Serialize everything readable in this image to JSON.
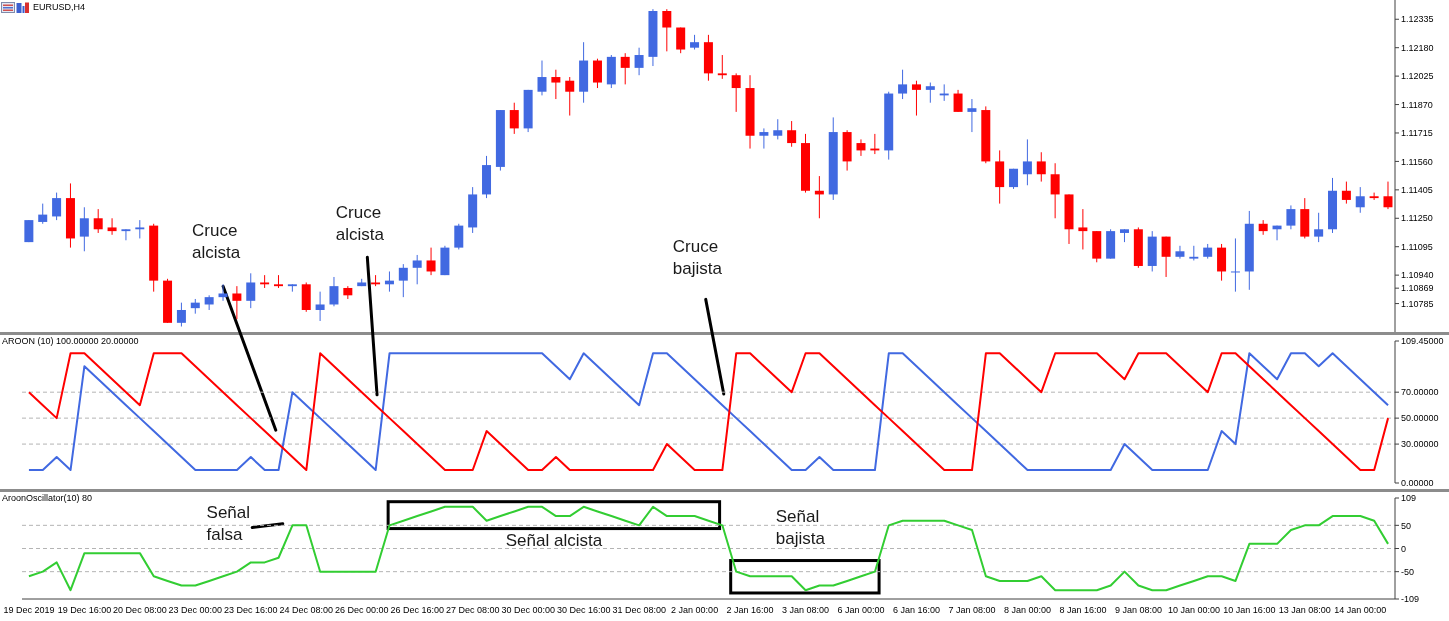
{
  "chart_data": [
    {
      "type": "candlestick",
      "title": "EURUSD,H4",
      "categories": [
        null,
        null,
        null,
        null,
        null,
        null,
        null,
        null,
        null,
        null,
        null,
        null,
        null,
        null,
        null,
        null,
        null,
        null,
        null,
        null,
        null,
        null,
        null,
        null,
        null,
        null,
        null,
        null,
        null,
        null,
        null,
        null,
        null,
        null,
        null,
        null,
        null,
        null,
        null,
        null,
        null,
        null,
        null,
        null,
        null,
        null,
        null,
        null,
        null,
        null,
        null,
        null,
        null,
        null,
        null,
        null,
        null,
        null,
        null,
        null,
        null,
        null,
        null,
        null,
        null,
        null,
        null,
        null,
        null,
        null,
        null,
        null,
        null,
        null,
        null,
        null,
        null,
        null,
        null,
        null,
        null,
        null,
        null,
        null,
        null,
        null,
        null,
        null,
        null,
        null,
        null,
        null,
        null,
        null,
        null,
        null,
        null,
        null,
        null
      ],
      "ohlc": [
        [
          1.1112,
          1.1124,
          1.1112,
          1.1124
        ],
        [
          1.1123,
          1.1133,
          1.1122,
          1.1127
        ],
        [
          1.1126,
          1.1139,
          1.1124,
          1.1136
        ],
        [
          1.1136,
          1.1144,
          1.1109,
          1.1114
        ],
        [
          1.1115,
          1.1131,
          1.1107,
          1.1125
        ],
        [
          1.1125,
          1.113,
          1.1117,
          1.1119
        ],
        [
          1.112,
          1.1125,
          1.1116,
          1.1118
        ],
        [
          1.1118,
          1.1119,
          1.1113,
          1.1119
        ],
        [
          1.1119,
          1.1124,
          1.1114,
          1.112
        ],
        [
          1.1121,
          1.1122,
          1.1085,
          1.1091
        ],
        [
          1.1091,
          1.1092,
          1.1068,
          1.1068
        ],
        [
          1.1068,
          1.1079,
          1.1066,
          1.1075
        ],
        [
          1.1076,
          1.1081,
          1.1073,
          1.1079
        ],
        [
          1.1078,
          1.1083,
          1.1075,
          1.1082
        ],
        [
          1.1082,
          1.1089,
          1.108,
          1.1084
        ],
        [
          1.1084,
          1.1088,
          1.107,
          1.108
        ],
        [
          1.108,
          1.1095,
          1.1076,
          1.109
        ],
        [
          1.109,
          1.1094,
          1.1087,
          1.1089
        ],
        [
          1.1089,
          1.1094,
          1.1087,
          1.1088
        ],
        [
          1.1088,
          1.1089,
          1.1085,
          1.1089
        ],
        [
          1.1089,
          1.109,
          1.1074,
          1.1075
        ],
        [
          1.1075,
          1.1085,
          1.1069,
          1.1078
        ],
        [
          1.1078,
          1.1093,
          1.1077,
          1.1088
        ],
        [
          1.1087,
          1.1088,
          1.1081,
          1.1083
        ],
        [
          1.1088,
          1.1092,
          1.1088,
          1.109
        ],
        [
          1.109,
          1.1094,
          1.1088,
          1.1089
        ],
        [
          1.1089,
          1.1096,
          1.1085,
          1.1091
        ],
        [
          1.1091,
          1.11,
          1.1082,
          1.1098
        ],
        [
          1.1098,
          1.1105,
          1.1089,
          1.1102
        ],
        [
          1.1102,
          1.1109,
          1.1094,
          1.1096
        ],
        [
          1.1094,
          1.111,
          1.1094,
          1.1109
        ],
        [
          1.1109,
          1.1122,
          1.1108,
          1.1121
        ],
        [
          1.112,
          1.1142,
          1.1117,
          1.1138
        ],
        [
          1.1138,
          1.1159,
          1.1136,
          1.1154
        ],
        [
          1.1153,
          1.1184,
          1.1151,
          1.1184
        ],
        [
          1.1184,
          1.1188,
          1.1171,
          1.1174
        ],
        [
          1.1174,
          1.1195,
          1.1172,
          1.1195
        ],
        [
          1.1194,
          1.1211,
          1.1192,
          1.1202
        ],
        [
          1.1202,
          1.1206,
          1.119,
          1.1199
        ],
        [
          1.12,
          1.1202,
          1.1181,
          1.1194
        ],
        [
          1.1194,
          1.1221,
          1.1188,
          1.1211
        ],
        [
          1.1211,
          1.1212,
          1.1196,
          1.1199
        ],
        [
          1.1198,
          1.1214,
          1.1196,
          1.1213
        ],
        [
          1.1213,
          1.1215,
          1.1198,
          1.1207
        ],
        [
          1.1207,
          1.1218,
          1.1203,
          1.1214
        ],
        [
          1.1213,
          1.1239,
          1.1208,
          1.1238
        ],
        [
          1.1238,
          1.1239,
          1.1216,
          1.1229
        ],
        [
          1.1229,
          1.1229,
          1.1215,
          1.1217
        ],
        [
          1.1218,
          1.1225,
          1.1217,
          1.1221
        ],
        [
          1.1221,
          1.1225,
          1.12,
          1.1204
        ],
        [
          1.1204,
          1.1214,
          1.1201,
          1.1203
        ],
        [
          1.1203,
          1.1204,
          1.1183,
          1.1196
        ],
        [
          1.1196,
          1.1203,
          1.1163,
          1.117
        ],
        [
          1.117,
          1.1174,
          1.1163,
          1.1172
        ],
        [
          1.117,
          1.1179,
          1.1168,
          1.1173
        ],
        [
          1.1173,
          1.1178,
          1.1164,
          1.1166
        ],
        [
          1.1166,
          1.1171,
          1.1139,
          1.114
        ],
        [
          1.114,
          1.1148,
          1.1125,
          1.1138
        ],
        [
          1.1138,
          1.118,
          1.1135,
          1.1172
        ],
        [
          1.1172,
          1.1173,
          1.1151,
          1.1156
        ],
        [
          1.1166,
          1.1168,
          1.1159,
          1.1162
        ],
        [
          1.1163,
          1.1171,
          1.116,
          1.1162
        ],
        [
          1.1162,
          1.1194,
          1.1157,
          1.1193
        ],
        [
          1.1193,
          1.1206,
          1.119,
          1.1198
        ],
        [
          1.1198,
          1.12,
          1.1181,
          1.1195
        ],
        [
          1.1195,
          1.1199,
          1.1188,
          1.1197
        ],
        [
          1.1192,
          1.1198,
          1.1189,
          1.1193
        ],
        [
          1.1193,
          1.1195,
          1.1183,
          1.1183
        ],
        [
          1.1183,
          1.119,
          1.1172,
          1.1185
        ],
        [
          1.1184,
          1.1186,
          1.1155,
          1.1156
        ],
        [
          1.1156,
          1.1162,
          1.1133,
          1.1142
        ],
        [
          1.1142,
          1.1152,
          1.1141,
          1.1152
        ],
        [
          1.1149,
          1.1168,
          1.1143,
          1.1156
        ],
        [
          1.1156,
          1.1161,
          1.1145,
          1.1149
        ],
        [
          1.1149,
          1.1155,
          1.1125,
          1.1138
        ],
        [
          1.1138,
          1.1138,
          1.1111,
          1.1119
        ],
        [
          1.112,
          1.113,
          1.1108,
          1.1118
        ],
        [
          1.1118,
          1.1118,
          1.1101,
          1.1103
        ],
        [
          1.1103,
          1.1119,
          1.1103,
          1.1118
        ],
        [
          1.1117,
          1.1119,
          1.1112,
          1.1119
        ],
        [
          1.1119,
          1.112,
          1.1098,
          1.1099
        ],
        [
          1.1099,
          1.1118,
          1.1096,
          1.1115
        ],
        [
          1.1115,
          1.1115,
          1.1093,
          1.1104
        ],
        [
          1.1104,
          1.111,
          1.1103,
          1.1107
        ],
        [
          1.1103,
          1.111,
          1.1102,
          1.1104
        ],
        [
          1.1104,
          1.1111,
          1.1103,
          1.1109
        ],
        [
          1.1109,
          1.1111,
          1.1091,
          1.1096
        ],
        [
          1.1096,
          1.1114,
          1.1085,
          1.1096
        ],
        [
          1.1096,
          1.1129,
          1.1086,
          1.1122
        ],
        [
          1.1122,
          1.1124,
          1.1116,
          1.1118
        ],
        [
          1.1119,
          1.1121,
          1.1113,
          1.1121
        ],
        [
          1.1121,
          1.1132,
          1.1119,
          1.113
        ],
        [
          1.113,
          1.1136,
          1.1114,
          1.1115
        ],
        [
          1.1115,
          1.1128,
          1.1112,
          1.1119
        ],
        [
          1.1119,
          1.1147,
          1.1117,
          1.114
        ],
        [
          1.114,
          1.1145,
          1.1133,
          1.1135
        ],
        [
          1.1131,
          1.1142,
          1.1128,
          1.1137
        ],
        [
          1.1137,
          1.1139,
          1.1135,
          1.1136
        ],
        [
          1.1137,
          1.1145,
          1.113,
          1.1131
        ]
      ],
      "colors": [
        "#4169e1",
        "#4169e1",
        "#4169e1",
        "#ff0000",
        "#4169e1",
        "#ff0000",
        "#ff0000",
        "#4169e1",
        "#4169e1",
        "#ff0000",
        "#ff0000",
        "#4169e1",
        "#4169e1",
        "#4169e1",
        "#4169e1",
        "#ff0000",
        "#4169e1",
        "#ff0000",
        "#ff0000",
        "#4169e1",
        "#ff0000",
        "#4169e1",
        "#4169e1",
        "#ff0000",
        "#4169e1",
        "#ff0000",
        "#4169e1",
        "#4169e1",
        "#4169e1",
        "#ff0000",
        "#4169e1",
        "#4169e1",
        "#4169e1",
        "#4169e1",
        "#4169e1",
        "#ff0000",
        "#4169e1",
        "#4169e1",
        "#ff0000",
        "#ff0000",
        "#4169e1",
        "#ff0000",
        "#4169e1",
        "#ff0000",
        "#4169e1",
        "#4169e1",
        "#ff0000",
        "#ff0000",
        "#4169e1",
        "#ff0000",
        "#ff0000",
        "#ff0000",
        "#ff0000",
        "#4169e1",
        "#4169e1",
        "#ff0000",
        "#ff0000",
        "#ff0000",
        "#4169e1",
        "#ff0000",
        "#ff0000",
        "#ff0000",
        "#4169e1",
        "#4169e1",
        "#ff0000",
        "#4169e1",
        "#4169e1",
        "#ff0000",
        "#4169e1",
        "#ff0000",
        "#ff0000",
        "#4169e1",
        "#4169e1",
        "#ff0000",
        "#ff0000",
        "#ff0000",
        "#ff0000",
        "#ff0000",
        "#4169e1",
        "#4169e1",
        "#ff0000",
        "#4169e1",
        "#ff0000",
        "#4169e1",
        "#4169e1",
        "#4169e1",
        "#ff0000",
        "#4169e1",
        "#4169e1",
        "#ff0000",
        "#4169e1",
        "#4169e1",
        "#ff0000",
        "#4169e1",
        "#4169e1",
        "#ff0000",
        "#4169e1",
        "#ff0000",
        "#ff0000"
      ],
      "ylim": [
        1.1063,
        1.1244
      ],
      "yticks": [
        1.12335,
        {
          "value": 1.1218,
          "label": "1.12180"
        },
        1.12025,
        {
          "value": 1.1187,
          "label": "1.11870"
        },
        1.11715,
        {
          "value": 1.1156,
          "label": "1.11560"
        },
        1.11405,
        {
          "value": 1.1125,
          "label": "1.11250"
        },
        1.11095,
        {
          "value": 1.1094,
          "label": "1.10940"
        },
        1.10869,
        1.10785
      ],
      "tick_labels": "y",
      "annotations": [
        "Cruce alcista",
        "Cruce alcista",
        "Cruce bajista"
      ]
    },
    {
      "type": "line",
      "title": "AROON (10) 100.00000 20.00000",
      "categories": [
        null,
        null,
        null,
        null,
        null,
        null,
        null,
        null,
        null,
        null,
        null,
        null,
        null,
        null,
        null,
        null,
        null,
        null,
        null,
        null,
        null,
        null,
        null,
        null,
        null,
        null,
        null,
        null,
        null,
        null,
        null,
        null,
        null,
        null,
        null,
        null,
        null,
        null,
        null,
        null,
        null,
        null,
        null,
        null,
        null,
        null,
        null,
        null,
        null,
        null,
        null,
        null,
        null,
        null,
        null,
        null,
        null,
        null,
        null,
        null,
        null,
        null,
        null,
        null,
        null,
        null,
        null,
        null,
        null,
        null,
        null,
        null,
        null,
        null,
        null,
        null,
        null,
        null,
        null,
        null,
        null,
        null,
        null,
        null,
        null,
        null,
        null,
        null,
        null,
        null,
        null,
        null,
        null,
        null,
        null,
        null,
        null,
        null,
        null
      ],
      "series": [
        {
          "color": "#4169e1",
          "values": [
            10,
            10,
            20,
            10,
            90,
            80,
            70,
            60,
            50,
            40,
            30,
            20,
            10,
            10,
            10,
            10,
            20,
            10,
            10,
            70,
            60,
            50,
            40,
            30,
            20,
            10,
            100,
            100,
            100,
            100,
            100,
            100,
            100,
            100,
            100,
            100,
            100,
            100,
            90,
            80,
            100,
            90,
            80,
            70,
            60,
            100,
            100,
            90,
            80,
            70,
            60,
            50,
            40,
            30,
            20,
            10,
            10,
            20,
            10,
            10,
            10,
            10,
            100,
            100,
            90,
            80,
            70,
            60,
            50,
            40,
            30,
            20,
            10,
            10,
            10,
            10,
            10,
            10,
            10,
            30,
            20,
            10,
            10,
            10,
            10,
            10,
            40,
            30,
            100,
            90,
            80,
            100,
            100,
            90,
            100,
            90,
            80,
            70,
            60
          ]
        },
        {
          "color": "#ff0000",
          "values": [
            70,
            60,
            50,
            100,
            100,
            90,
            80,
            70,
            60,
            100,
            100,
            100,
            90,
            80,
            70,
            60,
            50,
            40,
            30,
            20,
            10,
            100,
            90,
            80,
            70,
            60,
            50,
            40,
            30,
            20,
            10,
            10,
            10,
            40,
            30,
            20,
            10,
            10,
            20,
            10,
            10,
            10,
            10,
            10,
            10,
            10,
            30,
            20,
            10,
            10,
            10,
            100,
            100,
            90,
            80,
            70,
            100,
            100,
            90,
            80,
            70,
            60,
            50,
            40,
            30,
            20,
            10,
            10,
            10,
            100,
            100,
            90,
            80,
            70,
            100,
            100,
            100,
            100,
            90,
            80,
            100,
            100,
            100,
            90,
            80,
            70,
            100,
            100,
            90,
            80,
            70,
            60,
            50,
            40,
            30,
            20,
            10,
            10,
            50
          ]
        }
      ],
      "ylim": [
        0,
        109.45
      ],
      "yticks": [
        {
          "value": 0,
          "label": "0.00000"
        },
        {
          "value": 30,
          "label": "30.00000"
        },
        {
          "value": 50,
          "label": "50.00000"
        },
        {
          "value": 70,
          "label": "70.00000"
        },
        {
          "value": 109.45,
          "label": "109.45000"
        }
      ],
      "grid": "y",
      "tick_labels": "y"
    },
    {
      "type": "line",
      "title": "AroonOscillator(10) 80",
      "categories": [
        "19 Dec 2019",
        null,
        null,
        null,
        "19 Dec 16:00",
        null,
        null,
        null,
        "20 Dec 08:00",
        null,
        null,
        null,
        "23 Dec 00:00",
        null,
        null,
        null,
        "23 Dec 16:00",
        null,
        null,
        null,
        "24 Dec 08:00",
        null,
        null,
        null,
        "26 Dec 00:00",
        null,
        null,
        null,
        "26 Dec 16:00",
        null,
        null,
        null,
        "27 Dec 08:00",
        null,
        null,
        null,
        "30 Dec 00:00",
        null,
        null,
        null,
        "30 Dec 16:00",
        null,
        null,
        null,
        "31 Dec 08:00",
        null,
        null,
        null,
        "2 Jan 00:00",
        null,
        null,
        null,
        "2 Jan 16:00",
        null,
        null,
        null,
        "3 Jan 08:00",
        null,
        null,
        null,
        "6 Jan 00:00",
        null,
        null,
        null,
        "6 Jan 16:00",
        null,
        null,
        null,
        "7 Jan 08:00",
        null,
        null,
        null,
        "8 Jan 00:00",
        null,
        null,
        null,
        "8 Jan 16:00",
        null,
        null,
        null,
        "9 Jan 08:00",
        null,
        null,
        null,
        "10 Jan 00:00",
        null,
        null,
        null,
        "10 Jan 16:00",
        null,
        null,
        null,
        "13 Jan 08:00",
        null,
        null,
        null,
        "14 Jan 00:00",
        null,
        null
      ],
      "values": [
        -60,
        -50,
        -30,
        -90,
        -10,
        -10,
        -10,
        -10,
        -10,
        -60,
        -70,
        -80,
        -80,
        -70,
        -60,
        -50,
        -30,
        -30,
        -20,
        50,
        50,
        -50,
        -50,
        -50,
        -50,
        -50,
        50,
        60,
        70,
        80,
        90,
        90,
        90,
        60,
        70,
        80,
        90,
        90,
        70,
        70,
        90,
        80,
        70,
        60,
        50,
        90,
        70,
        70,
        70,
        60,
        50,
        -50,
        -60,
        -60,
        -60,
        -60,
        -90,
        -80,
        -80,
        -70,
        -60,
        -50,
        50,
        60,
        60,
        60,
        60,
        50,
        40,
        -60,
        -70,
        -70,
        -70,
        -60,
        -90,
        -90,
        -90,
        -90,
        -80,
        -50,
        -80,
        -90,
        -90,
        -80,
        -70,
        -60,
        -60,
        -70,
        10,
        10,
        10,
        40,
        50,
        50,
        70,
        70,
        70,
        60,
        10
      ],
      "color": "#32cd32",
      "ylim": [
        -109,
        109
      ],
      "yticks": [
        -109,
        -50,
        0,
        50,
        109
      ],
      "grid": "y",
      "annotations": [
        "Señal falsa",
        "Señal alcista",
        "Señal bajista"
      ]
    }
  ]
}
